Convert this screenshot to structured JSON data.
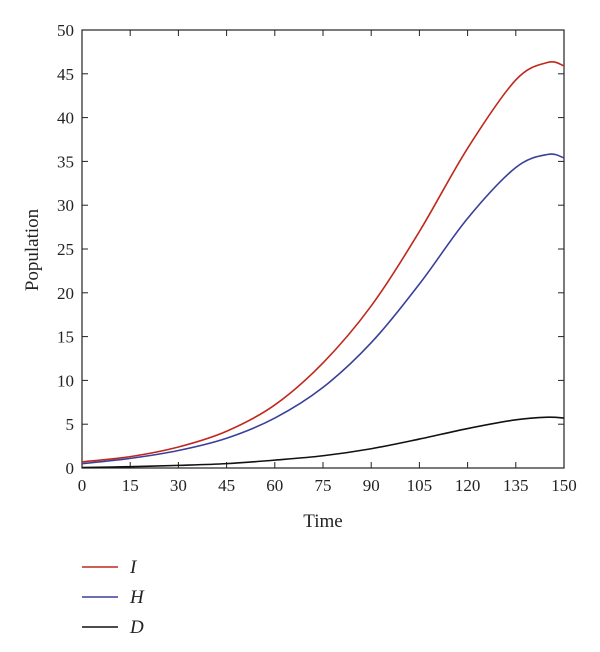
{
  "chart_data": {
    "type": "line",
    "title": "",
    "xlabel": "Time",
    "ylabel": "Population",
    "xlim": [
      0,
      150
    ],
    "ylim": [
      0,
      50
    ],
    "x_ticks": [
      0,
      15,
      30,
      45,
      60,
      75,
      90,
      105,
      120,
      135,
      150
    ],
    "y_ticks": [
      0,
      5,
      10,
      15,
      20,
      25,
      30,
      35,
      40,
      45,
      50
    ],
    "grid": false,
    "legend_position": "bottom-left, below plot",
    "x": [
      0,
      15,
      30,
      45,
      60,
      75,
      90,
      105,
      120,
      135,
      145,
      150
    ],
    "series": [
      {
        "name": "I",
        "color": "#c0281c",
        "values": [
          0.7,
          1.3,
          2.4,
          4.2,
          7.2,
          12.0,
          18.5,
          27.0,
          36.5,
          44.3,
          46.3,
          45.9
        ]
      },
      {
        "name": "H",
        "color": "#3a3f9a",
        "values": [
          0.5,
          1.1,
          2.0,
          3.4,
          5.7,
          9.2,
          14.3,
          21.0,
          28.5,
          34.3,
          35.8,
          35.4
        ]
      },
      {
        "name": "D",
        "color": "#111111",
        "values": [
          0.05,
          0.15,
          0.3,
          0.5,
          0.9,
          1.4,
          2.2,
          3.3,
          4.5,
          5.5,
          5.8,
          5.7
        ]
      }
    ]
  }
}
